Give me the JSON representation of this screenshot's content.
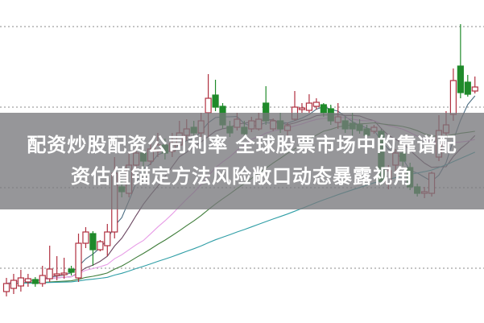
{
  "banner": {
    "line1": "配资炒股配资公司利率 全球股票市场中的靠谱配",
    "line2": "资估值锚定方法风险敞口动态暴露视角"
  },
  "chart_data": {
    "type": "candlestick",
    "title": "",
    "xlabel": "",
    "ylabel": "",
    "ylim": [
      0,
      40
    ],
    "grid": "horizontal dotted",
    "gridlines": [
      6.7,
      16.7,
      26.7,
      36.7
    ],
    "colors": {
      "up": "#b03040",
      "down": "#1f8a2a",
      "grid": "#a0a0a0"
    },
    "candles": [
      [
        3.8,
        4.8,
        5.5,
        3.2
      ],
      [
        4.2,
        5.2,
        6.0,
        3.5
      ],
      [
        4.5,
        5.5,
        6.5,
        3.8
      ],
      [
        5.0,
        5.4,
        6.0,
        4.4
      ],
      [
        5.3,
        4.8,
        5.6,
        4.4
      ],
      [
        4.8,
        5.8,
        7.0,
        4.4
      ],
      [
        5.4,
        6.6,
        9.5,
        5.0
      ],
      [
        5.8,
        6.0,
        8.2,
        5.2
      ],
      [
        5.9,
        6.1,
        8.0,
        5.4
      ],
      [
        6.6,
        6.2,
        7.0,
        5.8
      ],
      [
        5.5,
        9.8,
        11.0,
        5.0
      ],
      [
        9.8,
        11.2,
        11.8,
        9.2
      ],
      [
        11.0,
        9.0,
        11.3,
        7.0
      ],
      [
        9.0,
        10.0,
        10.2,
        8.8
      ],
      [
        9.5,
        11.2,
        12.2,
        8.2
      ],
      [
        11.2,
        18.5,
        20.5,
        10.4
      ],
      [
        16.8,
        16.2,
        17.5,
        15.5
      ],
      [
        16.0,
        19.5,
        21.0,
        15.5
      ],
      [
        19.5,
        21.0,
        22.0,
        19.0
      ],
      [
        21.0,
        20.0,
        21.5,
        18.5
      ],
      [
        20.0,
        21.5,
        22.5,
        19.5
      ],
      [
        21.2,
        22.0,
        23.5,
        20.5
      ],
      [
        22.0,
        21.0,
        22.8,
        20.2
      ],
      [
        21.2,
        22.2,
        23.5,
        20.5
      ],
      [
        22.0,
        23.5,
        25.0,
        21.5
      ],
      [
        23.2,
        24.0,
        25.2,
        22.5
      ],
      [
        24.2,
        23.5,
        25.0,
        22.8
      ],
      [
        23.5,
        25.0,
        26.0,
        23.0
      ],
      [
        26.0,
        27.8,
        30.8,
        23.0
      ],
      [
        28.2,
        26.7,
        30.1,
        26.2
      ],
      [
        26.8,
        24.5,
        27.2,
        24.0
      ],
      [
        24.3,
        23.5,
        25.0,
        23.0
      ],
      [
        24.2,
        25.2,
        26.0,
        23.8
      ],
      [
        24.2,
        23.4,
        25.0,
        23.0
      ],
      [
        24.0,
        25.0,
        25.5,
        23.6
      ],
      [
        24.0,
        25.2,
        26.0,
        23.8
      ],
      [
        27.2,
        25.0,
        29.3,
        24.5
      ],
      [
        24.0,
        25.0,
        25.3,
        23.7
      ],
      [
        25.0,
        24.0,
        26.0,
        23.5
      ],
      [
        23.8,
        24.4,
        24.8,
        23.0
      ],
      [
        25.2,
        26.7,
        28.7,
        25.0
      ],
      [
        26.4,
        26.6,
        27.2,
        26.0
      ],
      [
        26.3,
        27.2,
        28.3,
        26.0
      ],
      [
        26.8,
        27.3,
        27.8,
        26.4
      ],
      [
        27.0,
        26.0,
        27.2,
        25.5
      ],
      [
        26.5,
        25.0,
        27.0,
        24.5
      ],
      [
        24.8,
        25.5,
        27.2,
        24.0
      ],
      [
        25.0,
        24.0,
        25.5,
        23.5
      ],
      [
        24.7,
        24.0,
        26.0,
        23.2
      ],
      [
        24.5,
        23.8,
        25.2,
        23.4
      ],
      [
        24.0,
        23.2,
        24.5,
        22.8
      ],
      [
        23.7,
        24.2,
        24.5,
        23.4
      ],
      [
        23.7,
        17.5,
        24.0,
        17.0
      ],
      [
        17.2,
        18.8,
        19.5,
        16.5
      ],
      [
        19.5,
        21.0,
        21.5,
        18.5
      ],
      [
        21.0,
        20.0,
        21.5,
        19.4
      ],
      [
        19.2,
        16.8,
        19.8,
        16.4
      ],
      [
        16.8,
        16.0,
        17.2,
        15.6
      ],
      [
        16.0,
        16.2,
        16.8,
        15.4
      ],
      [
        16.0,
        18.5,
        18.7,
        15.6
      ],
      [
        20.5,
        23.8,
        25.7,
        20.0
      ],
      [
        23.5,
        24.5,
        26.2,
        23.0
      ],
      [
        25.8,
        30.0,
        31.5,
        25.0
      ],
      [
        31.8,
        28.5,
        37.0,
        27.8
      ],
      [
        29.8,
        28.3,
        30.7,
        28.0
      ],
      [
        28.7,
        29.2,
        30.5,
        28.4
      ]
    ],
    "candle_fields": [
      "open",
      "close",
      "high",
      "low"
    ],
    "moving_average_colors": [
      "#4a6c82",
      "#6a4660",
      "#e79be6",
      "#3f7d3a",
      "#2f9ea6"
    ]
  }
}
